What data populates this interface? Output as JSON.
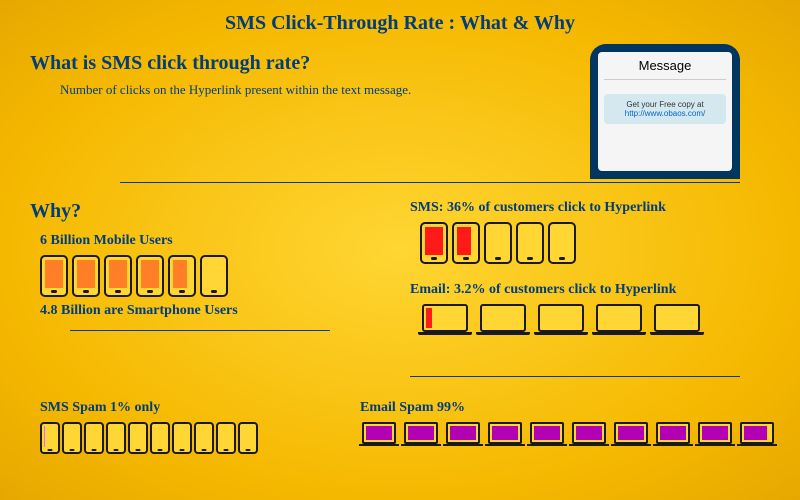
{
  "title": "SMS Click-Through Rate : What & Why",
  "what": {
    "heading": "What is SMS click through rate?",
    "desc": "Number of clicks on the Hyperlink present within the text message."
  },
  "phone_graphic": {
    "title": "Message",
    "bubble_text": "Get your Free copy at",
    "bubble_link": "http://www.obaos.com/",
    "body_color": "#00365f",
    "screen_color": "#f5f5f5",
    "bubble_color": "#d4e8f0"
  },
  "why": {
    "heading": "Why?",
    "mobile_users_label": "6 Billion Mobile Users",
    "smartphone_users_label": "4.8 Billion are Smartphone Users",
    "phones": {
      "count": 6,
      "fill_color": "#ff7f27",
      "fills_pct": [
        100,
        100,
        100,
        100,
        80,
        0
      ]
    }
  },
  "sms_ctr": {
    "label": "SMS: 36% of customers click to Hyperlink",
    "phones": {
      "count": 5,
      "fill_color": "#ff1a1a",
      "fills_pct": [
        100,
        80,
        0,
        0,
        0
      ]
    }
  },
  "email_ctr": {
    "label": "Email: 3.2% of customers click to Hyperlink",
    "laptops": {
      "count": 5,
      "fill_color": "#ff1a1a",
      "fills_pct": [
        16,
        0,
        0,
        0,
        0
      ]
    }
  },
  "sms_spam": {
    "label": "SMS Spam 1% only",
    "phones": {
      "count": 10,
      "fill_color": "#e066ff",
      "fills_pct": [
        10,
        0,
        0,
        0,
        0,
        0,
        0,
        0,
        0,
        0
      ]
    }
  },
  "email_spam": {
    "label": "Email Spam 99%",
    "laptops": {
      "count": 10,
      "fill_color": "#b300b3",
      "fills_pct": [
        100,
        100,
        100,
        100,
        100,
        100,
        100,
        100,
        100,
        90
      ]
    }
  },
  "colors": {
    "text": "#003d7a",
    "background_inner": "#ffd633",
    "background_outer": "#e6a800"
  }
}
